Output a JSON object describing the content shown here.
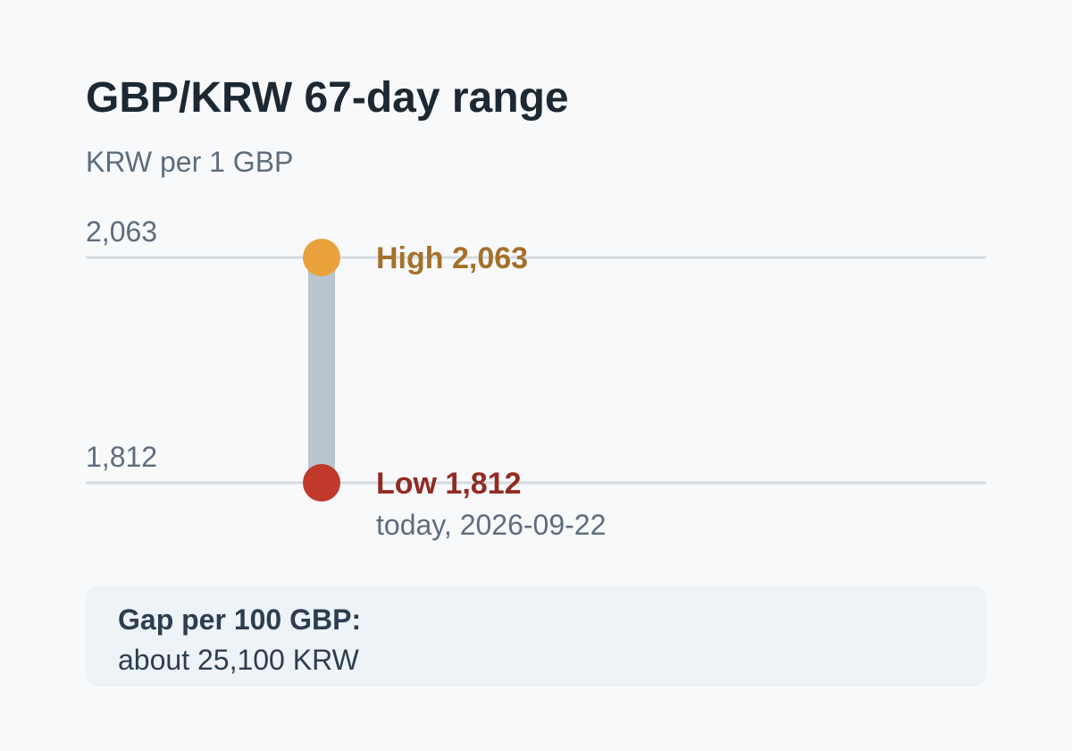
{
  "chart_data": {
    "type": "range",
    "title": "GBP/KRW 67-day range",
    "subtitle": "KRW per 1 GBP",
    "high": 2063,
    "low": 1812,
    "high_tick_label": "2,063",
    "low_tick_label": "1,812",
    "high_label": "High 2,063",
    "low_label": "Low 1,812",
    "low_note": "today, 2026-09-22",
    "ylim": [
      1812,
      2063
    ],
    "grid": true
  },
  "gap": {
    "label": "Gap per 100 GBP:",
    "value": "about 25,100 KRW"
  },
  "colors": {
    "high": "#e9a23b",
    "high_text": "#a5712a",
    "low": "#c0392b",
    "low_text": "#922b21",
    "bar": "#b8c5cf",
    "grid": "#d5dbe0"
  }
}
